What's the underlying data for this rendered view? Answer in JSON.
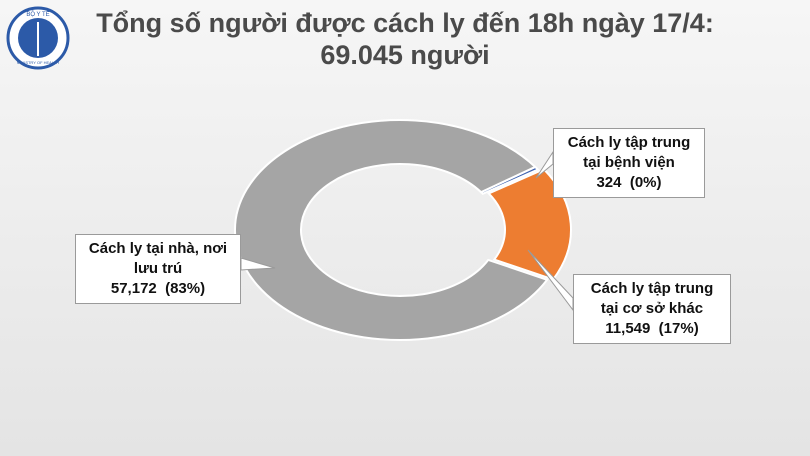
{
  "logo": {
    "top": "BỘ Y TẾ",
    "bottom": "MINISTRY OF HEALTH"
  },
  "chart_data": {
    "type": "donut",
    "title": "Tổng số người được cách ly đến 18h ngày 17/4:",
    "subtitle": "69.045 người",
    "categories": [
      "Cách ly tập trung tại bệnh viện",
      "Cách ly tập trung tại cơ sở khác",
      "Cách ly tại nhà, nơi lưu trú"
    ],
    "values": [
      324,
      11549,
      57172
    ],
    "value_labels": [
      "324  (0%)",
      "11,549  (17%)",
      "57,172  (83%)"
    ],
    "colors": [
      "#3f63b0",
      "#ed7d31",
      "#a5a5a5"
    ]
  }
}
